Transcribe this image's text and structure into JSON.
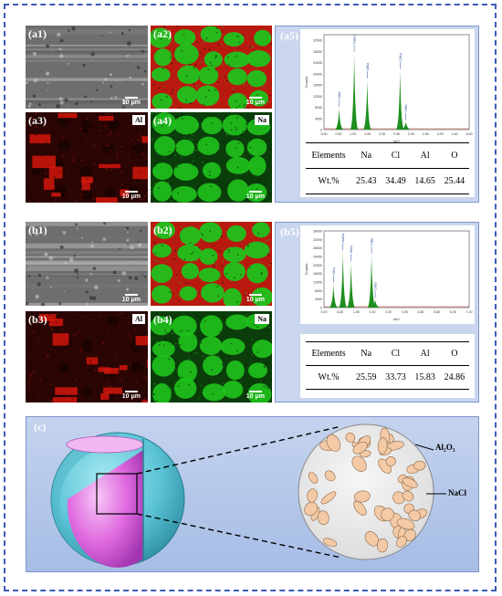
{
  "figure": {
    "rows": [
      {
        "id": "a",
        "panels": [
          {
            "label": "(a1)",
            "type": "sem",
            "scale": "10 μm"
          },
          {
            "label": "(a2)",
            "type": "overlay",
            "scale": "10 μm"
          },
          {
            "label": "(a3)",
            "type": "al-map",
            "element": "Al",
            "scale": "10 μm"
          },
          {
            "label": "(a4)",
            "type": "na-map",
            "element": "Na",
            "scale": "10 μm"
          }
        ],
        "eds": {
          "label": "(a5)",
          "xlabel": "keV",
          "ylabel": "Counts",
          "yticks": [
            "0",
            "2000",
            "4000",
            "6000",
            "8000",
            "10000",
            "12000",
            "14000",
            "16000",
            "18000",
            "20000",
            "22000",
            "24000",
            "26000",
            "28000",
            "30000",
            "32000",
            "34000"
          ],
          "xticks": [
            "0.00",
            "0.50",
            "1.00",
            "1.50",
            "2.00",
            "2.50",
            "3.00",
            "3.50",
            "4.00",
            "4.50",
            "5.00"
          ],
          "peaks": [
            {
              "name": "OKa",
              "x": 0.52,
              "h": 0.22
            },
            {
              "name": "NaKa",
              "x": 1.04,
              "h": 0.8
            },
            {
              "name": "AlKa",
              "x": 1.49,
              "h": 0.52
            },
            {
              "name": "ClKa",
              "x": 2.62,
              "h": 0.62
            },
            {
              "name": "ClKb",
              "x": 2.82,
              "h": 0.08
            }
          ],
          "xmax": 5.0
        },
        "table": {
          "header": [
            "Elements",
            "Na",
            "Cl",
            "Al",
            "O"
          ],
          "values": [
            "Wt.%",
            "25.43",
            "34.49",
            "14.65",
            "25.44"
          ]
        }
      },
      {
        "id": "b",
        "panels": [
          {
            "label": "(b1)",
            "type": "sem",
            "scale": "10 μm"
          },
          {
            "label": "(b2)",
            "type": "overlay",
            "scale": "10 μm"
          },
          {
            "label": "(b3)",
            "type": "al-map",
            "element": "Al",
            "scale": "10 μm"
          },
          {
            "label": "(b4)",
            "type": "na-map",
            "element": "Na",
            "scale": "10 μm"
          }
        ],
        "eds": {
          "label": "(b5)",
          "xlabel": "keV",
          "ylabel": "Counts",
          "yticks": [
            "0",
            "4000",
            "8000",
            "12000",
            "16000",
            "20000",
            "24000",
            "28000",
            "32000",
            "36000"
          ],
          "xticks": [
            "0.00",
            "0.80",
            "1.60",
            "2.40",
            "3.20",
            "4.00",
            "4.80",
            "5.60",
            "6.40",
            "7.20"
          ],
          "peaks": [
            {
              "name": "OKa",
              "x": 0.52,
              "h": 0.3
            },
            {
              "name": "NaKa",
              "x": 1.04,
              "h": 0.72
            },
            {
              "name": "AlKa",
              "x": 1.49,
              "h": 0.58
            },
            {
              "name": "ClKa",
              "x": 2.62,
              "h": 0.68
            },
            {
              "name": "ClKb",
              "x": 2.82,
              "h": 0.1
            }
          ],
          "xmax": 8.0
        },
        "table": {
          "header": [
            "Elements",
            "Na",
            "Cl",
            "Al",
            "O"
          ],
          "values": [
            "Wt.%",
            "25.59",
            "33.73",
            "15.83",
            "24.86"
          ]
        }
      }
    ],
    "schematic": {
      "label": "(c)",
      "al2o3_label": "Al₂O₃",
      "nacl_label": "NaCl"
    }
  },
  "colors": {
    "frame": "#3b5bb5",
    "al_map": "#d4160c",
    "na_map": "#1fc21c",
    "eds_peak": "#1e8f1e",
    "particle": "#f4c9a6",
    "shell": "#5bc4d6",
    "core": "#e06ae0"
  }
}
